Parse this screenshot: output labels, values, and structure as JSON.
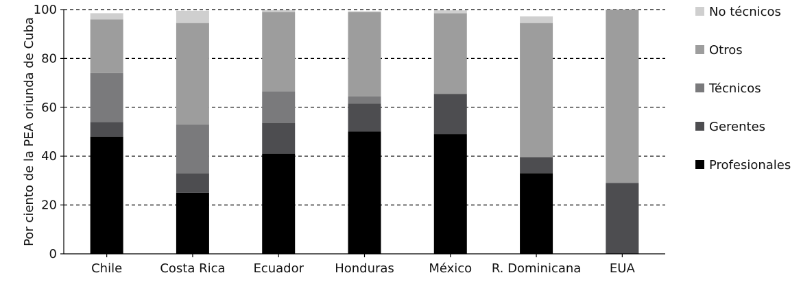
{
  "chart_data": {
    "type": "bar",
    "stacked": true,
    "title": "",
    "xlabel": "",
    "ylabel": "Por ciento de la PEA oriunda  de  Cuba",
    "ylim": [
      0,
      100
    ],
    "yticks": [
      "0",
      "20",
      "40",
      "60",
      "80",
      "100"
    ],
    "grid": "horizontal-dashed",
    "legend_position": "right",
    "categories": [
      "Chile",
      "Costa Rica",
      "Ecuador",
      "Honduras",
      "México",
      "R. Dominicana",
      "EUA"
    ],
    "series": [
      {
        "name": "Profesionales",
        "color": "#000000",
        "values": [
          48,
          25,
          41,
          50,
          49,
          33,
          0
        ]
      },
      {
        "name": "Gerentes",
        "color": "#4d4d50",
        "values": [
          6,
          8,
          12.5,
          11.5,
          16.5,
          6.5,
          29
        ]
      },
      {
        "name": "Técnicos",
        "color": "#7a7a7c",
        "values": [
          20,
          20,
          13,
          3,
          0,
          0,
          0
        ]
      },
      {
        "name": "Otros",
        "color": "#9d9d9d",
        "values": [
          22,
          41.5,
          32.5,
          34.5,
          33,
          55,
          71
        ]
      },
      {
        "name": "No técnicos",
        "color": "#cfcfcf",
        "values": [
          2.5,
          5,
          0.8,
          0.3,
          1.2,
          2.7,
          0
        ]
      }
    ]
  }
}
